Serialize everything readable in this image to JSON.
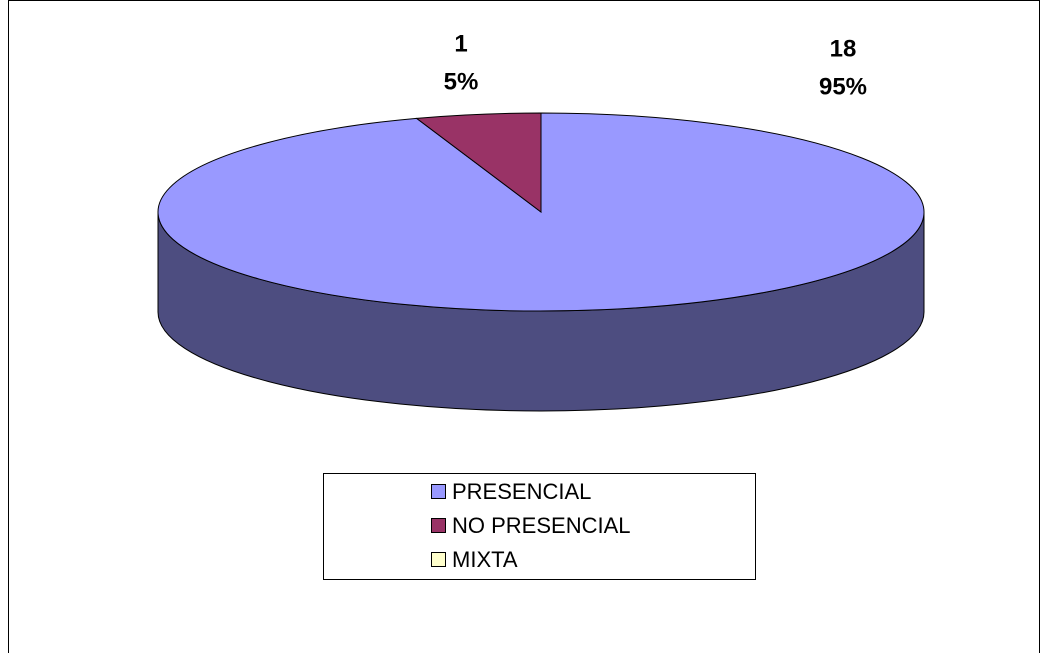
{
  "chart_data": {
    "type": "pie",
    "categories": [
      "PRESENCIAL",
      "NO PRESENCIAL",
      "MIXTA"
    ],
    "values": [
      18,
      1,
      0
    ],
    "percent_labels": [
      "95%",
      "5%",
      null
    ],
    "colors": [
      "#9999ff",
      "#993366",
      "#ffffcc"
    ],
    "legend": "bottom"
  }
}
